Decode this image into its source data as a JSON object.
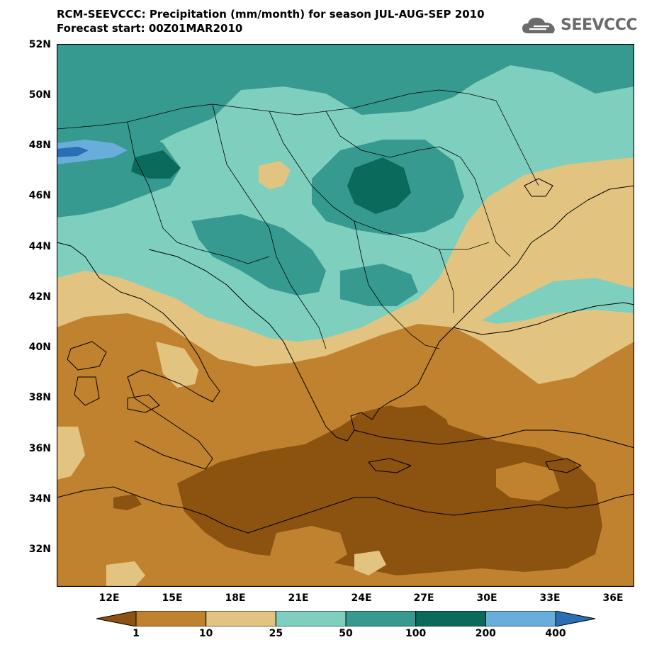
{
  "title": {
    "line1": "RCM-SEEVCCC: Precipitation (mm/month) for season JUL-AUG-SEP 2010",
    "line2": "Forecast start: 00Z01MAR2010"
  },
  "logo": {
    "text": "SEEVCCC",
    "icon": "cloud-icon"
  },
  "map": {
    "lat_range": [
      30.5,
      52
    ],
    "lon_range": [
      9.5,
      37
    ],
    "lat_ticks": [
      "52N",
      "50N",
      "48N",
      "46N",
      "44N",
      "42N",
      "40N",
      "38N",
      "36N",
      "34N",
      "32N"
    ],
    "lon_ticks": [
      "12E",
      "15E",
      "18E",
      "21E",
      "24E",
      "27E",
      "30E",
      "33E",
      "36E"
    ]
  },
  "colorbar": {
    "levels": [
      "1",
      "10",
      "25",
      "50",
      "100",
      "200",
      "400"
    ],
    "colors": [
      "#8b5210",
      "#c0822e",
      "#e2c480",
      "#7fcfbf",
      "#369a90",
      "#0a6b5c",
      "#69aedb",
      "#2a6fb6"
    ]
  }
}
